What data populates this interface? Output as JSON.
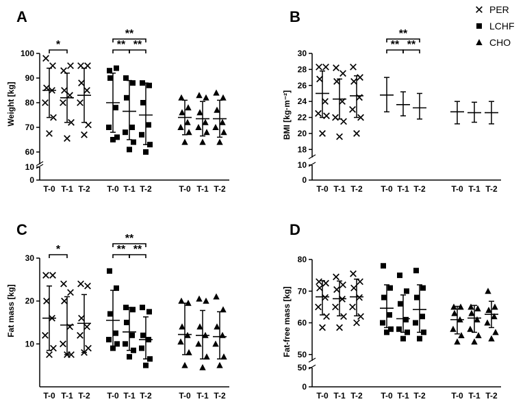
{
  "legend": [
    {
      "label": "PER",
      "marker": "x"
    },
    {
      "label": "LCHF",
      "marker": "square"
    },
    {
      "label": "CHO",
      "marker": "triangle"
    }
  ],
  "timepoints": [
    "T-0",
    "T-1",
    "T-2"
  ],
  "chart_data": [
    {
      "type": "scatter",
      "panel": "A",
      "ylabel": "Weight [kg]",
      "ylim_main": [
        55,
        100
      ],
      "ylim_lower": [
        0,
        10
      ],
      "yticks_main": [
        60,
        70,
        80,
        90,
        100
      ],
      "yticks_lower": [
        0,
        10
      ],
      "categories": [
        "T-0",
        "T-1",
        "T-2"
      ],
      "series": [
        {
          "name": "PER",
          "marker": "x",
          "mean": [
            85,
            82,
            83
          ],
          "sd_low": [
            74,
            72,
            72
          ],
          "sd_high": [
            94,
            92,
            94
          ],
          "points": [
            [
              98,
              95,
              86,
              85,
              80,
              74,
              67.5
            ],
            [
              93,
              95,
              85,
              83,
              80,
              72,
              65.5
            ],
            [
              95,
              95,
              88,
              85,
              80,
              71,
              67
            ]
          ]
        },
        {
          "name": "LCHF",
          "marker": "square",
          "mean": [
            80,
            76.5,
            75
          ],
          "sd_low": [
            68,
            65,
            63
          ],
          "sd_high": [
            92,
            89,
            88
          ],
          "points": [
            [
              93,
              94,
              90,
              78,
              70,
              66,
              65
            ],
            [
              90,
              88,
              82,
              70,
              68,
              64,
              61
            ],
            [
              88,
              87,
              80,
              71,
              67,
              63,
              60
            ]
          ]
        },
        {
          "name": "CHO",
          "marker": "triangle",
          "mean": [
            74,
            73.5,
            73.5
          ],
          "sd_low": [
            67,
            66.5,
            66
          ],
          "sd_high": [
            81,
            80.5,
            81
          ],
          "points": [
            [
              82,
              78,
              76,
              72,
              70,
              68,
              64
            ],
            [
              83,
              82,
              76,
              72,
              70,
              68,
              64
            ],
            [
              84,
              82,
              77,
              72,
              70,
              68,
              64
            ]
          ]
        }
      ],
      "significance": [
        {
          "group": 0,
          "from": 0,
          "to": 1,
          "label": "*",
          "level": 0
        },
        {
          "group": 1,
          "from": 0,
          "to": 1,
          "label": "**",
          "level": 0
        },
        {
          "group": 1,
          "from": 1,
          "to": 2,
          "label": "**",
          "level": 0
        },
        {
          "group": 1,
          "from": 0,
          "to": 2,
          "label": "**",
          "level": 1
        }
      ]
    },
    {
      "type": "scatter",
      "panel": "B",
      "ylabel": "BMI [kg·m⁻²]",
      "ylim_main": [
        17,
        30
      ],
      "ylim_lower": [
        0,
        10
      ],
      "yticks_main": [
        18,
        20,
        22,
        24,
        26,
        28,
        30
      ],
      "yticks_lower": [
        0,
        10
      ],
      "categories": [
        "T-0",
        "T-1",
        "T-2"
      ],
      "series": [
        {
          "name": "PER",
          "marker": "x",
          "mean": [
            25,
            24.3,
            24.7
          ],
          "sd_low": [
            22,
            21.8,
            22
          ],
          "sd_high": [
            27.8,
            26.8,
            27.2
          ],
          "points": [
            [
              28.3,
              28.3,
              26.8,
              24,
              22.5,
              22.2,
              20
            ],
            [
              28.2,
              27.5,
              26.5,
              24,
              22,
              21.5,
              19.6
            ],
            [
              28.3,
              27,
              26.5,
              24.5,
              23,
              22,
              20
            ]
          ]
        },
        {
          "name": "LCHF",
          "marker": "square",
          "mean": [
            24.8,
            23.6,
            23.2
          ],
          "sd_low": [
            22.7,
            22.2,
            21.8
          ],
          "sd_high": [
            27,
            25.2,
            25
          ]
        },
        {
          "name": "CHO",
          "marker": "triangle",
          "mean": [
            22.7,
            22.6,
            22.6
          ],
          "sd_low": [
            21.2,
            21.4,
            21.2
          ],
          "sd_high": [
            24,
            23.9,
            24
          ]
        }
      ],
      "significance": [
        {
          "group": 1,
          "from": 0,
          "to": 1,
          "label": "**",
          "level": 0
        },
        {
          "group": 1,
          "from": 1,
          "to": 2,
          "label": "**",
          "level": 0
        },
        {
          "group": 1,
          "from": 0,
          "to": 2,
          "label": "**",
          "level": 1
        }
      ]
    },
    {
      "type": "scatter",
      "panel": "C",
      "ylabel": "Fat mass [kg]",
      "ylim_main": [
        0,
        30
      ],
      "yticks_main": [
        10,
        20,
        30
      ],
      "categories": [
        "T-0",
        "T-1",
        "T-2"
      ],
      "series": [
        {
          "name": "PER",
          "marker": "x",
          "mean": [
            16,
            14.4,
            14.8
          ],
          "sd_low": [
            8.5,
            7.5,
            8
          ],
          "sd_high": [
            23.5,
            21,
            21.5
          ],
          "points": [
            [
              26,
              26,
              20,
              16,
              12,
              9,
              7.5
            ],
            [
              24,
              22,
              20,
              14,
              10,
              7.5,
              7.5
            ],
            [
              24,
              23.5,
              16,
              14,
              12,
              9,
              8
            ]
          ]
        },
        {
          "name": "LCHF",
          "marker": "square",
          "mean": [
            15.5,
            12.8,
            11
          ],
          "sd_low": [
            9,
            8.5,
            6.5
          ],
          "sd_high": [
            22.5,
            18.5,
            16.3
          ],
          "points": [
            [
              27,
              23,
              17,
              12.5,
              11,
              10,
              9
            ],
            [
              18.5,
              18,
              15,
              12,
              10,
              8.5,
              7
            ],
            [
              18.5,
              17.5,
              12,
              11,
              9,
              6.5,
              5
            ]
          ]
        },
        {
          "name": "CHO",
          "marker": "triangle",
          "mean": [
            12.2,
            12,
            11.7
          ],
          "sd_low": [
            7.5,
            6.5,
            6.5
          ],
          "sd_high": [
            19.5,
            17.8,
            17.5
          ],
          "points": [
            [
              20,
              19.5,
              14,
              12,
              10.5,
              8,
              5
            ],
            [
              20.5,
              20,
              14,
              12,
              10,
              7,
              4.5
            ],
            [
              21,
              18,
              14,
              12,
              10,
              7,
              5
            ]
          ]
        }
      ],
      "significance": [
        {
          "group": 0,
          "from": 0,
          "to": 1,
          "label": "*",
          "level": 0
        },
        {
          "group": 1,
          "from": 0,
          "to": 1,
          "label": "**",
          "level": 0
        },
        {
          "group": 1,
          "from": 1,
          "to": 2,
          "label": "**",
          "level": 0
        },
        {
          "group": 1,
          "from": 0,
          "to": 2,
          "label": "**",
          "level": 1
        }
      ]
    },
    {
      "type": "scatter",
      "panel": "D",
      "ylabel": "Fat-free mass [kg]",
      "ylim_main": [
        48,
        80
      ],
      "ylim_lower": [
        0,
        50
      ],
      "yticks_main": [
        50,
        60,
        70,
        80
      ],
      "yticks_lower": [
        0,
        50
      ],
      "categories": [
        "T-0",
        "T-1",
        "T-2"
      ],
      "series": [
        {
          "name": "PER",
          "marker": "x",
          "mean": [
            68.2,
            67.6,
            68.2
          ],
          "sd_low": [
            62.5,
            62.2,
            62.2
          ],
          "sd_high": [
            73.3,
            73.2,
            73.8
          ],
          "points": [
            [
              73,
              72.5,
              71,
              68,
              65,
              62,
              58.5
            ],
            [
              74.5,
              72,
              70.5,
              67.5,
              65,
              62,
              58.5
            ],
            [
              75.5,
              73,
              71,
              68,
              65,
              62,
              60
            ]
          ]
        },
        {
          "name": "LCHF",
          "marker": "square",
          "mean": [
            64.6,
            61.3,
            64.2
          ],
          "sd_low": [
            58.5,
            57,
            57
          ],
          "sd_high": [
            72,
            68.8,
            72
          ],
          "points": [
            [
              78,
              71,
              68,
              62.5,
              60,
              58,
              57
            ],
            [
              75,
              70,
              66,
              61,
              58,
              57,
              55
            ],
            [
              76.5,
              71,
              68,
              62,
              60,
              57,
              55
            ]
          ]
        },
        {
          "name": "CHO",
          "marker": "triangle",
          "mean": [
            61,
            61.5,
            62.7
          ],
          "sd_low": [
            56.5,
            57,
            58.5
          ],
          "sd_high": [
            65.2,
            65.5,
            66.8
          ],
          "points": [
            [
              65,
              65,
              63,
              61,
              58,
              56,
              54
            ],
            [
              65,
              64.5,
              63,
              61,
              58,
              56,
              54
            ],
            [
              70,
              65,
              64,
              62,
              60,
              57,
              55
            ]
          ]
        }
      ],
      "significance": []
    }
  ]
}
